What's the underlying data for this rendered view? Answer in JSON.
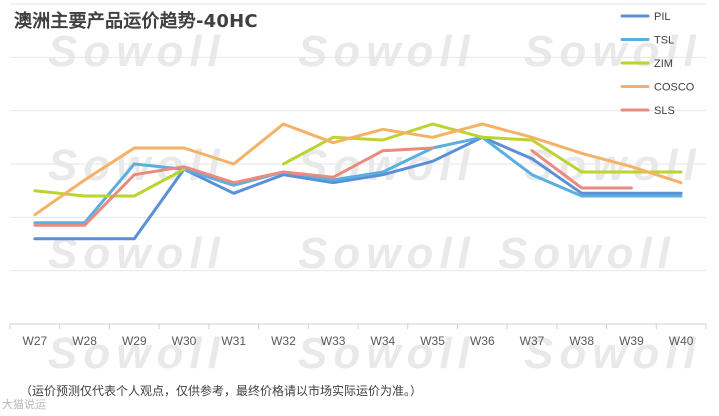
{
  "header": {
    "title": "澳洲主要产品运价趋势-40HC"
  },
  "footer": {
    "note": "（运价预测仅代表个人观点，仅供参考，最终价格请以市场实际运价为准。）",
    "corner_mark": "大猫说运"
  },
  "watermark": {
    "text": "Sowoll"
  },
  "chart_data": {
    "type": "line",
    "title": "澳洲主要产品运价趋势-40HC",
    "categories": [
      "W27",
      "W28",
      "W29",
      "W30",
      "W31",
      "W32",
      "W33",
      "W34",
      "W35",
      "W36",
      "W37",
      "W38",
      "W39",
      "W40"
    ],
    "ylim": [
      0,
      6
    ],
    "y_tick_labels_shown": false,
    "grid": true,
    "legend_position": "top-right",
    "series": [
      {
        "name": "PIL",
        "color": "#5b8fd6",
        "values": [
          1.6,
          1.6,
          1.6,
          2.9,
          2.45,
          2.8,
          2.65,
          2.8,
          3.05,
          3.5,
          3.1,
          2.45,
          2.45,
          2.45
        ]
      },
      {
        "name": "TSL",
        "color": "#5aafe0",
        "values": [
          1.9,
          1.9,
          3.0,
          2.9,
          2.6,
          2.85,
          2.7,
          2.85,
          3.3,
          3.5,
          2.8,
          2.4,
          2.4,
          2.4
        ]
      },
      {
        "name": "ZIM",
        "color": "#bcd330",
        "values": [
          2.5,
          2.4,
          2.4,
          2.9,
          null,
          3.0,
          3.5,
          3.45,
          3.75,
          3.5,
          3.45,
          2.85,
          2.85,
          2.85
        ]
      },
      {
        "name": "COSCO",
        "color": "#f3b265",
        "values": [
          2.05,
          2.7,
          3.3,
          3.3,
          3.0,
          3.75,
          3.4,
          3.65,
          3.5,
          3.75,
          3.5,
          3.2,
          2.95,
          2.65
        ]
      },
      {
        "name": "SLS",
        "color": "#e98b7e",
        "values": [
          1.85,
          1.85,
          2.8,
          2.95,
          2.65,
          2.85,
          2.75,
          3.25,
          3.3,
          null,
          3.25,
          2.55,
          2.55,
          null
        ]
      }
    ]
  }
}
